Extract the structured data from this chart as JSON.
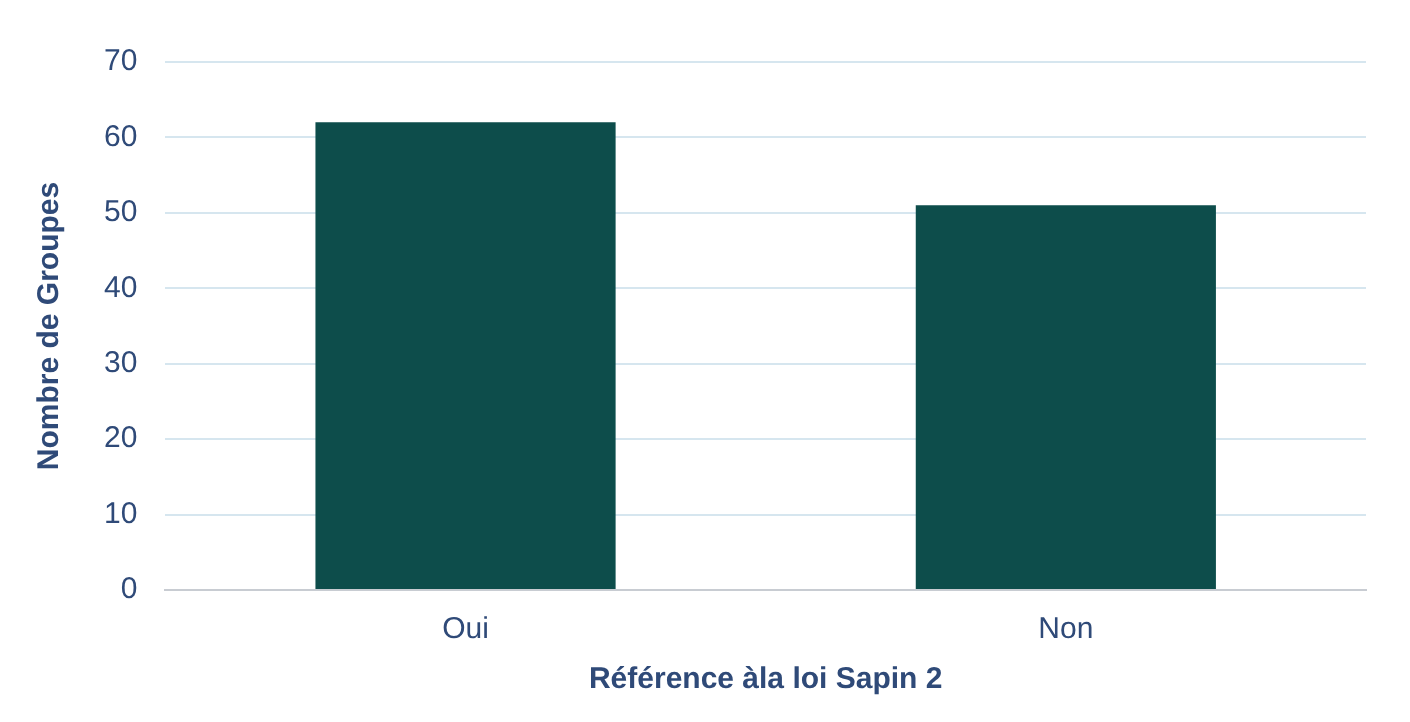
{
  "chart_data": {
    "type": "bar",
    "xlabel": "Référence àla loi Sapin 2",
    "ylabel": "Nombre de Groupes",
    "categories": [
      "Oui",
      "Non"
    ],
    "values": [
      62,
      51
    ],
    "color": "#0d4d4b",
    "ylim": [
      0,
      70
    ],
    "yticks": [
      0,
      10,
      20,
      30,
      40,
      50,
      60,
      70
    ],
    "grid": "y",
    "legend": false
  }
}
